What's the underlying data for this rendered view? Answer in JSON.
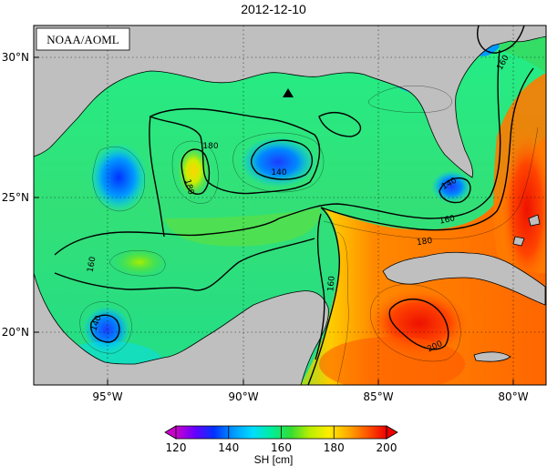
{
  "title": "2012-12-10",
  "credit": "NOAA/AOML",
  "colorbar": {
    "label": "SH [cm]",
    "ticks": [
      "120",
      "140",
      "160",
      "180",
      "200"
    ],
    "min": 120,
    "max": 200,
    "colors": [
      "#cc00cc",
      "#6600ff",
      "#0033ff",
      "#0099ff",
      "#00ddff",
      "#00ee99",
      "#33dd33",
      "#bbee00",
      "#ffee00",
      "#ffaa00",
      "#ff5500",
      "#ee0000"
    ]
  },
  "axes": {
    "x_ticks": [
      "95°W",
      "90°W",
      "85°W",
      "80°W"
    ],
    "y_ticks": [
      "30°N",
      "25°N",
      "20°N"
    ]
  },
  "contour_labels": [
    "140",
    "140",
    "140",
    "160",
    "160",
    "160",
    "160",
    "180",
    "180",
    "180",
    "200"
  ],
  "colors": {
    "land": "#bfbfbf",
    "coast": "#000000",
    "background": "#ffffff"
  }
}
